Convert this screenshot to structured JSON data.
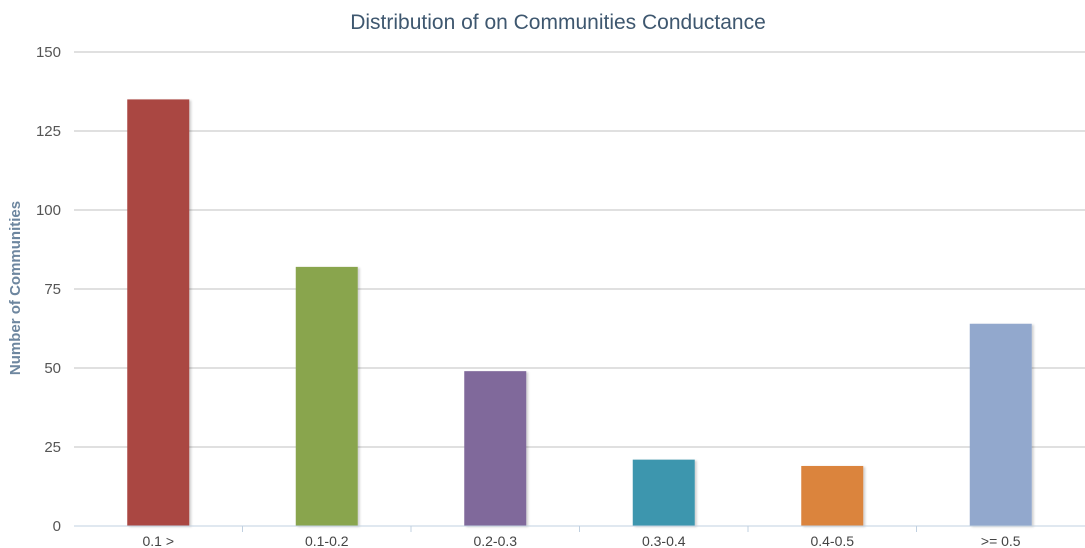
{
  "chart_data": {
    "type": "bar",
    "title": "Distribution of on Communities Conductance",
    "xlabel": "",
    "ylabel": "Number of Communities",
    "categories": [
      "0.1 >",
      "0.1-0.2",
      "0.2-0.3",
      "0.3-0.4",
      "0.4-0.5",
      ">= 0.5"
    ],
    "values": [
      135,
      82,
      49,
      21,
      19,
      64
    ],
    "colors": [
      "#aa4643",
      "#89a54e",
      "#80699b",
      "#3d96ae",
      "#db843d",
      "#92a8cd"
    ],
    "ylim": [
      0,
      150
    ],
    "yticks": [
      "0",
      "25",
      "50",
      "75",
      "100",
      "125",
      "150"
    ],
    "grid": true,
    "legend": "none"
  }
}
